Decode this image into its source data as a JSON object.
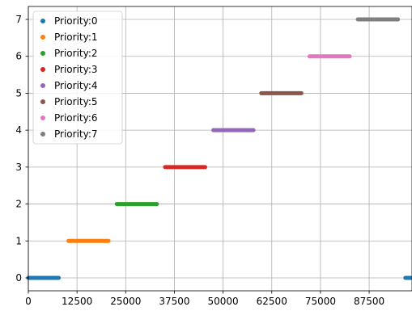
{
  "chart_data": {
    "type": "scatter",
    "x_ticks": [
      0,
      12500,
      25000,
      37500,
      50000,
      62500,
      75000,
      87500
    ],
    "x_tick_labels": [
      "0",
      "12500",
      "25000",
      "37500",
      "50000",
      "62500",
      "75000",
      "87500"
    ],
    "y_ticks": [
      0,
      1,
      2,
      3,
      4,
      5,
      6,
      7
    ],
    "y_tick_labels": [
      "0",
      "1",
      "2",
      "3",
      "4",
      "5",
      "6",
      "7"
    ],
    "xlim": [
      0,
      98500
    ],
    "ylim": [
      -0.35,
      7.35
    ],
    "grid": true,
    "legend_position": "top-left",
    "series": [
      {
        "name": "Priority:0",
        "color": "#1f77b4",
        "segments": [
          {
            "y": 0,
            "x_start": 0,
            "x_end": 7800
          },
          {
            "y": 0,
            "x_start": 96800,
            "x_end": 98500
          }
        ]
      },
      {
        "name": "Priority:1",
        "color": "#ff7f0e",
        "segments": [
          {
            "y": 1,
            "x_start": 10300,
            "x_end": 20600
          }
        ]
      },
      {
        "name": "Priority:2",
        "color": "#2ca02c",
        "segments": [
          {
            "y": 2,
            "x_start": 22700,
            "x_end": 33000
          }
        ]
      },
      {
        "name": "Priority:3",
        "color": "#d62728",
        "segments": [
          {
            "y": 3,
            "x_start": 35100,
            "x_end": 45400
          }
        ]
      },
      {
        "name": "Priority:4",
        "color": "#9467bd",
        "segments": [
          {
            "y": 4,
            "x_start": 47500,
            "x_end": 57800
          }
        ]
      },
      {
        "name": "Priority:5",
        "color": "#8c564b",
        "segments": [
          {
            "y": 5,
            "x_start": 59800,
            "x_end": 70100
          }
        ]
      },
      {
        "name": "Priority:6",
        "color": "#e377c2",
        "segments": [
          {
            "y": 6,
            "x_start": 72200,
            "x_end": 82500
          }
        ]
      },
      {
        "name": "Priority:7",
        "color": "#7f7f7f",
        "segments": [
          {
            "y": 7,
            "x_start": 84600,
            "x_end": 94900
          }
        ]
      }
    ]
  }
}
